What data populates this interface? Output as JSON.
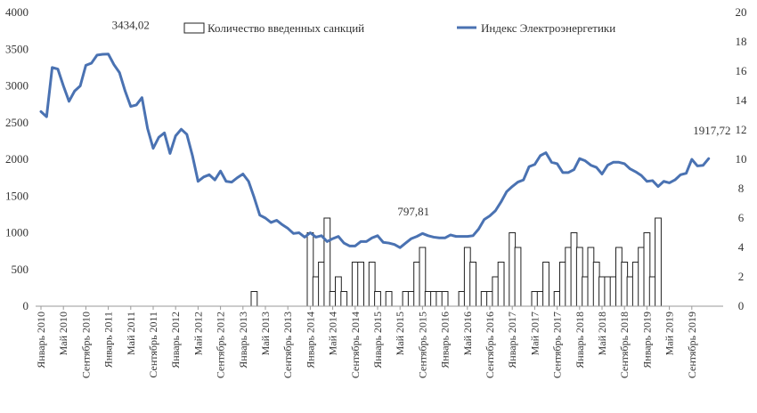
{
  "chart_data": {
    "type": "bar+line",
    "title": "",
    "legend": [
      {
        "name": "Количество введенных санкций",
        "kind": "bar",
        "color": "#ffffff"
      },
      {
        "name": "Индекс Электроэнергетики",
        "kind": "line",
        "color": "#4a72b2"
      }
    ],
    "legend_position": "top-right",
    "y_left": {
      "min": 0,
      "max": 4000,
      "ticks": [
        "0",
        "500",
        "1000",
        "1500",
        "2000",
        "2500",
        "3000",
        "3500",
        "4000"
      ]
    },
    "y_right": {
      "min": 0,
      "max": 20,
      "ticks": [
        "0",
        "2",
        "4",
        "6",
        "8",
        "10",
        "12",
        "14",
        "16",
        "18",
        "20"
      ]
    },
    "x_ticks": [
      "Январь 2010",
      "Май 2010",
      "Сентябрь 2010",
      "Январь 2011",
      "Май 2011",
      "Сентябрь 2011",
      "Январь 2012",
      "Май 2012",
      "Сентябрь 2012",
      "Январь 2013",
      "Май 2013",
      "Сентябрь 2013",
      "Январь 2014",
      "Май 2014",
      "Сентябрь 2014",
      "Январь 2015",
      "Май 2015",
      "Сентябрь 2015",
      "Январь 2016",
      "Май 2016",
      "Сентябрь 2016",
      "Январь 2017",
      "Май 2017",
      "Сентябрь 2017",
      "Январь 2018",
      "Май 2018",
      "Сентябрь 2018",
      "Январь 2019",
      "Май 2019",
      "Сентябрь 2019"
    ],
    "x_start": "Январь 2010",
    "months": 120,
    "series": [
      {
        "name": "Индекс Электроэнергетики",
        "axis": "left",
        "values": [
          2650,
          2580,
          3250,
          3230,
          3000,
          2790,
          2930,
          3000,
          3280,
          3310,
          3420,
          3430,
          3434.02,
          3290,
          3180,
          2930,
          2720,
          2740,
          2840,
          2420,
          2150,
          2300,
          2360,
          2080,
          2320,
          2410,
          2340,
          2050,
          1700,
          1760,
          1790,
          1720,
          1840,
          1700,
          1690,
          1750,
          1800,
          1700,
          1480,
          1240,
          1200,
          1140,
          1170,
          1110,
          1060,
          990,
          1000,
          940,
          1000,
          940,
          960,
          880,
          920,
          950,
          860,
          820,
          820,
          880,
          880,
          930,
          960,
          870,
          860,
          840,
          797.81,
          860,
          920,
          950,
          990,
          960,
          940,
          930,
          930,
          970,
          950,
          950,
          950,
          960,
          1050,
          1180,
          1230,
          1300,
          1420,
          1560,
          1630,
          1690,
          1720,
          1900,
          1930,
          2050,
          2090,
          1960,
          1940,
          1820,
          1820,
          1860,
          2010,
          1980,
          1920,
          1890,
          1800,
          1920,
          1960,
          1960,
          1940,
          1870,
          1830,
          1780,
          1700,
          1710,
          1630,
          1700,
          1680,
          1720,
          1790,
          1810,
          2000,
          1910,
          1917.72,
          2010
        ]
      },
      {
        "name": "Количество введенных санкций",
        "axis": "right",
        "values": [
          0,
          0,
          0,
          0,
          0,
          0,
          0,
          0,
          0,
          0,
          0,
          0,
          0,
          0,
          0,
          0,
          0,
          0,
          0,
          0,
          0,
          0,
          0,
          0,
          0,
          0,
          0,
          0,
          0,
          0,
          0,
          0,
          0,
          0,
          0,
          0,
          0,
          0,
          1,
          0,
          0,
          0,
          0,
          0,
          0,
          0,
          0,
          0,
          5,
          2,
          3,
          6,
          1,
          2,
          1,
          0,
          3,
          3,
          0,
          3,
          1,
          0,
          1,
          0,
          0,
          1,
          1,
          3,
          4,
          1,
          1,
          1,
          1,
          0,
          0,
          1,
          4,
          3,
          0,
          1,
          1,
          2,
          3,
          0,
          5,
          4,
          0,
          0,
          1,
          1,
          3,
          0,
          1,
          3,
          4,
          5,
          4,
          2,
          4,
          3,
          2,
          2,
          2,
          4,
          3,
          2,
          3,
          4,
          5,
          2,
          6,
          0,
          0,
          0,
          0,
          0,
          0,
          0,
          0,
          0
        ]
      }
    ],
    "annotations": [
      {
        "text": "3434,02",
        "month_index": 12,
        "value": 3434.02
      },
      {
        "text": "797,81",
        "month_index": 64,
        "value": 797.81
      },
      {
        "text": "1917,72",
        "month_index": 118,
        "value": 1917.72
      }
    ]
  }
}
